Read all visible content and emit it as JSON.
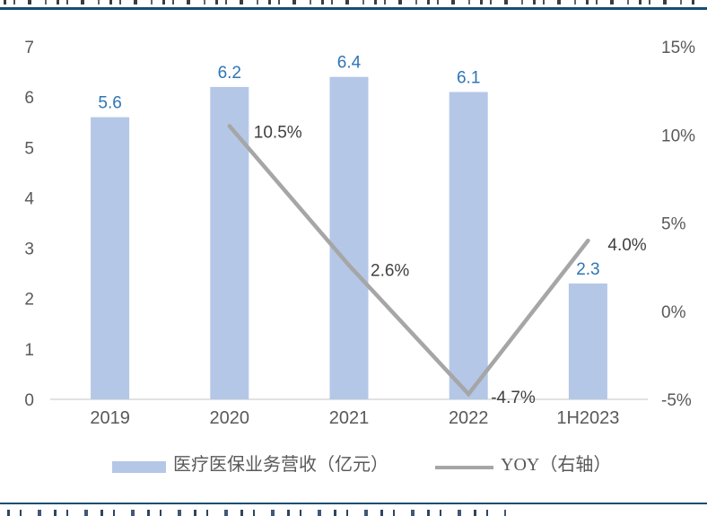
{
  "page": {
    "rule_color": "#134E71",
    "background": "#FFFFFF"
  },
  "chart_data": {
    "type": "bar+line",
    "title": "",
    "categories": [
      "2019",
      "2020",
      "2021",
      "2022",
      "1H2023"
    ],
    "series": [
      {
        "name": "医疗医保业务营收（亿元）",
        "type": "bar",
        "axis": "left",
        "values": [
          5.6,
          6.2,
          6.4,
          6.1,
          2.3
        ],
        "color": "#B4C7E7",
        "label_color": "#2E75B6"
      },
      {
        "name": "YOY（右轴）",
        "type": "line",
        "axis": "right",
        "values": [
          null,
          10.5,
          2.6,
          -4.7,
          4.0
        ],
        "labels": [
          "",
          "10.5%",
          "2.6%",
          "-4.7%",
          "4.0%"
        ],
        "color": "#A6A6A6",
        "label_color": "#404040"
      }
    ],
    "left_axis": {
      "min": 0,
      "max": 7,
      "ticks": [
        "7",
        "6",
        "5",
        "4",
        "3",
        "2",
        "1",
        "0"
      ]
    },
    "right_axis": {
      "min": -5,
      "max": 15,
      "ticks": [
        "15%",
        "10%",
        "5%",
        "0%",
        "-5%"
      ]
    },
    "grid": false,
    "legend_position": "bottom",
    "axis_label_color": "#595959",
    "axis_line_color": "#D9D9D9"
  }
}
